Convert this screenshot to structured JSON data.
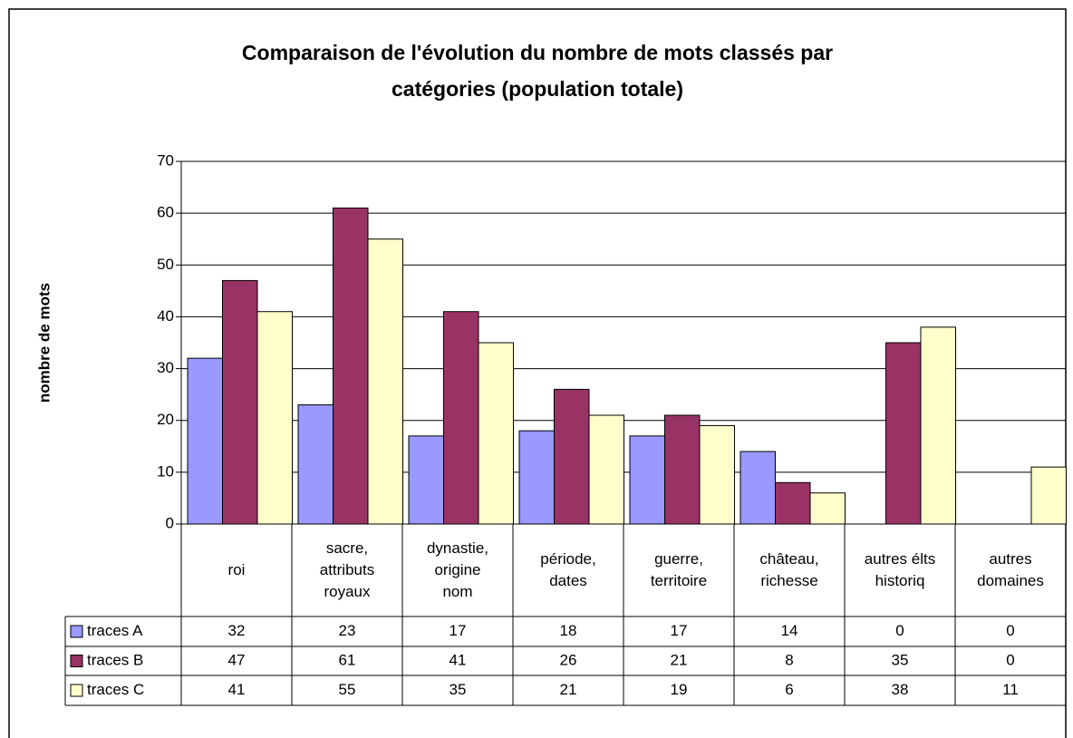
{
  "chart_data": {
    "type": "bar",
    "title": "Comparaison de l'évolution du nombre de mots classés par catégories (population totale)",
    "y_label": "nombre de mots",
    "categories": [
      "roi",
      "sacre,\nattributs\nroyaux",
      "dynastie,\norigine\nnom",
      "période,\ndates",
      "guerre,\nterritoire",
      "château,\nrichesse",
      "autres élts\nhistoriq",
      "autres\ndomaines"
    ],
    "series": [
      {
        "name": "traces A",
        "color": "#9999ff",
        "values": [
          32,
          23,
          17,
          18,
          17,
          14,
          0,
          0
        ]
      },
      {
        "name": "traces B",
        "color": "#993366",
        "values": [
          47,
          61,
          41,
          26,
          21,
          8,
          35,
          0
        ]
      },
      {
        "name": "traces C",
        "color": "#ffffcc",
        "values": [
          41,
          55,
          35,
          21,
          19,
          6,
          38,
          11
        ]
      }
    ],
    "ylim": [
      0,
      70
    ],
    "yticks": [
      0,
      10,
      20,
      30,
      40,
      50,
      60,
      70
    ],
    "grid": true,
    "data_table": true
  }
}
